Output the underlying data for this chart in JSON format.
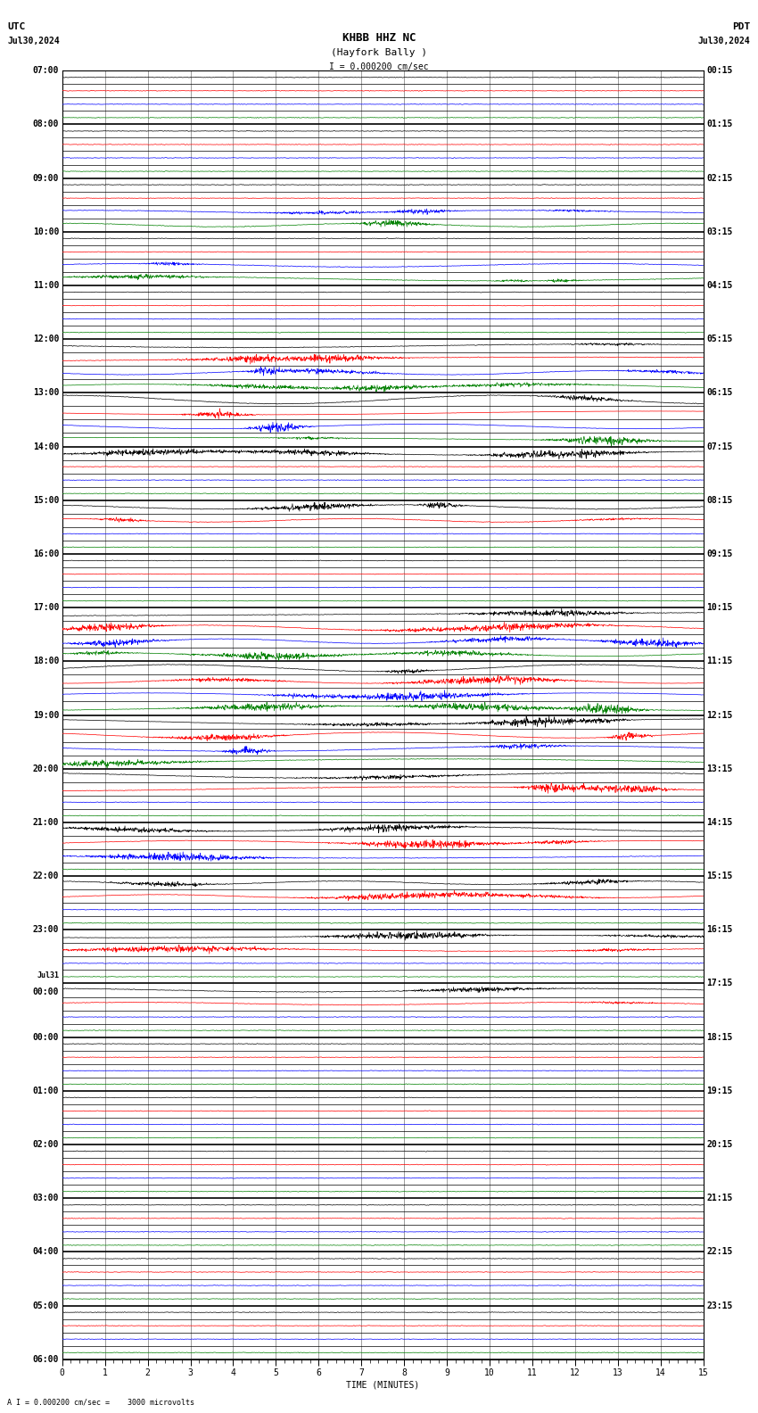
{
  "title_line1": "KHBB HHZ NC",
  "title_line2": "(Hayfork Bally )",
  "scale_label": "I = 0.000200 cm/sec",
  "bottom_label": "A I = 0.000200 cm/sec =    3000 microvolts",
  "utc_label": "UTC",
  "pdt_label": "PDT",
  "date_left": "Jul30,2024",
  "date_right": "Jul30,2024",
  "xlabel": "TIME (MINUTES)",
  "left_times": [
    "07:00",
    "08:00",
    "09:00",
    "10:00",
    "11:00",
    "12:00",
    "13:00",
    "14:00",
    "15:00",
    "16:00",
    "17:00",
    "18:00",
    "19:00",
    "20:00",
    "21:00",
    "22:00",
    "23:00",
    "Jul31",
    "00:00",
    "01:00",
    "02:00",
    "03:00",
    "04:00",
    "05:00",
    "06:00"
  ],
  "right_times": [
    "00:15",
    "01:15",
    "02:15",
    "03:15",
    "04:15",
    "05:15",
    "06:15",
    "07:15",
    "08:15",
    "09:15",
    "10:15",
    "11:15",
    "12:15",
    "13:15",
    "14:15",
    "15:15",
    "16:15",
    "17:15",
    "18:15",
    "19:15",
    "20:15",
    "21:15",
    "22:15",
    "23:15"
  ],
  "n_rows": 96,
  "bg_color": "#ffffff",
  "trace_colors": [
    "black",
    "red",
    "blue",
    "green"
  ],
  "font_size_title": 9,
  "font_size_labels": 8,
  "font_size_ticks": 7,
  "xlim": [
    0,
    15
  ],
  "xticks": [
    0,
    1,
    2,
    3,
    4,
    5,
    6,
    7,
    8,
    9,
    10,
    11,
    12,
    13,
    14,
    15
  ]
}
